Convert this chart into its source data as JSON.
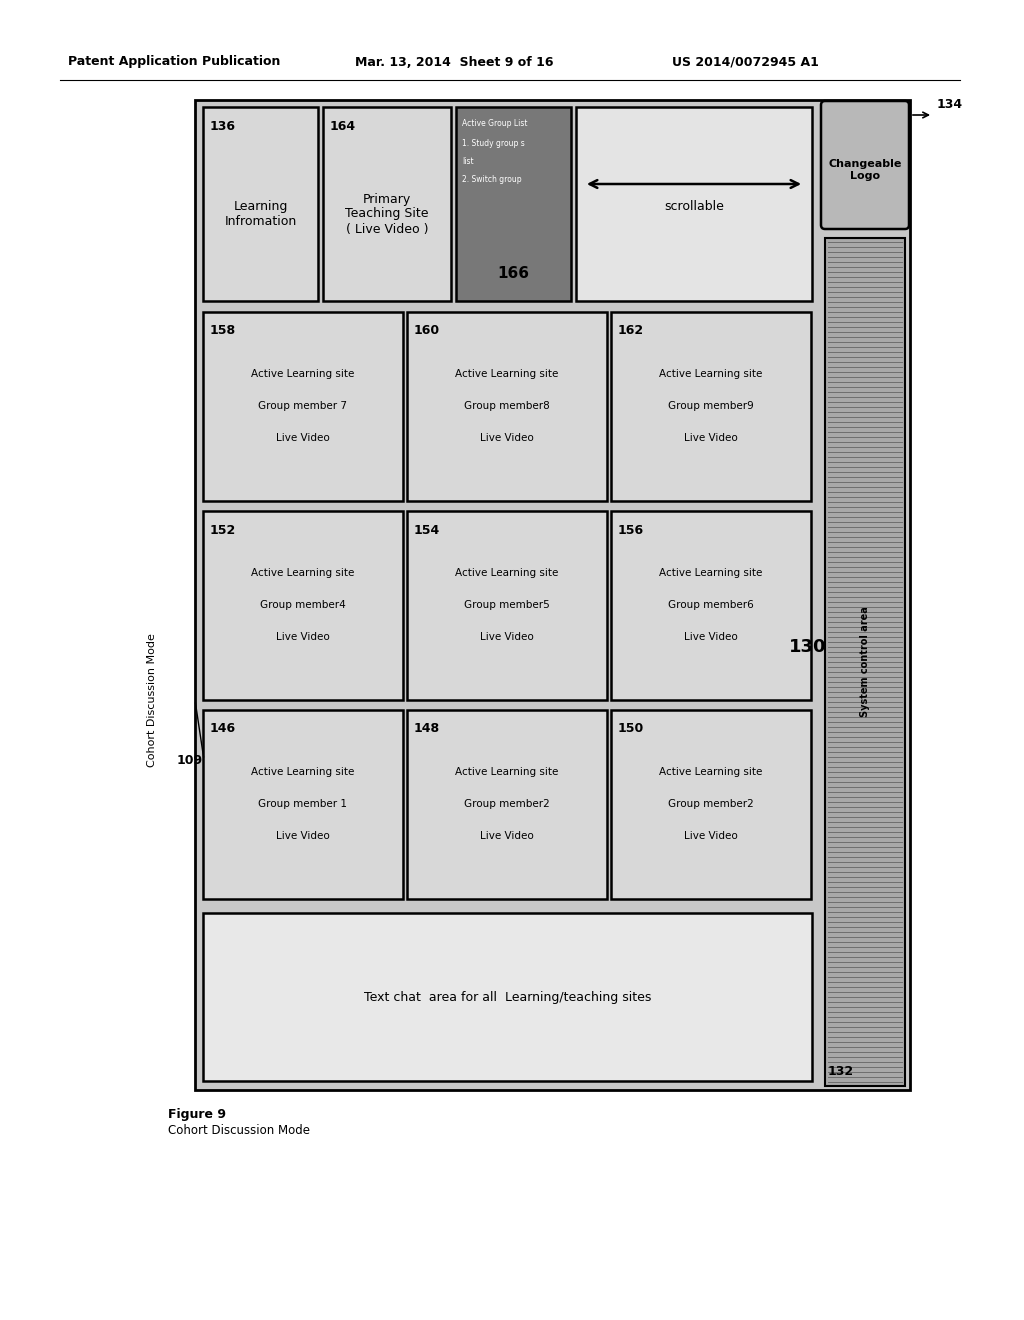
{
  "header_left": "Patent Application Publication",
  "header_mid": "Mar. 13, 2014  Sheet 9 of 16",
  "header_right": "US 2014/0072945 A1",
  "figure_label": "Figure 9",
  "figure_sublabel": "Cohort Discussion Mode",
  "label_109": "109",
  "grid_cells": [
    {
      "num": "146",
      "lines": [
        "Active Learning site",
        "Group member 1",
        "Live Video"
      ],
      "col": 0,
      "row": 2
    },
    {
      "num": "148",
      "lines": [
        "Active Learning site",
        "Group member2",
        "Live Video"
      ],
      "col": 1,
      "row": 2
    },
    {
      "num": "150",
      "lines": [
        "Active Learning site",
        "Group member2",
        "Live Video"
      ],
      "col": 2,
      "row": 2
    },
    {
      "num": "152",
      "lines": [
        "Active Learning site",
        "Group member4",
        "Live Video"
      ],
      "col": 0,
      "row": 1
    },
    {
      "num": "154",
      "lines": [
        "Active Learning site",
        "Group member5",
        "Live Video"
      ],
      "col": 1,
      "row": 1
    },
    {
      "num": "156",
      "lines": [
        "Active Learning site",
        "Group member6",
        "Live Video"
      ],
      "col": 2,
      "row": 1
    },
    {
      "num": "158",
      "lines": [
        "Active Learning site",
        "Group member 7",
        "Live Video"
      ],
      "col": 0,
      "row": 0
    },
    {
      "num": "160",
      "lines": [
        "Active Learning site",
        "Group member8",
        "Live Video"
      ],
      "col": 1,
      "row": 0
    },
    {
      "num": "162",
      "lines": [
        "Active Learning site",
        "Group member9",
        "Live Video"
      ],
      "col": 2,
      "row": 0
    }
  ],
  "scrollable_label": "scrollable",
  "label_130": "130",
  "text_chat_label": "Text chat  area for all  Learning/teaching sites",
  "system_control_label": "System control area",
  "label_132": "132",
  "changeable_logo_label": "Changeable\nLogo",
  "label_134": "134",
  "bg_outer": "#c8c8c8",
  "bg_cell_light": "#d8d8d8",
  "bg_cell_dark": "#787878",
  "bg_scroll": "#e4e4e4",
  "bg_sys": "#a8a8a8",
  "bg_logo": "#b8b8b8"
}
